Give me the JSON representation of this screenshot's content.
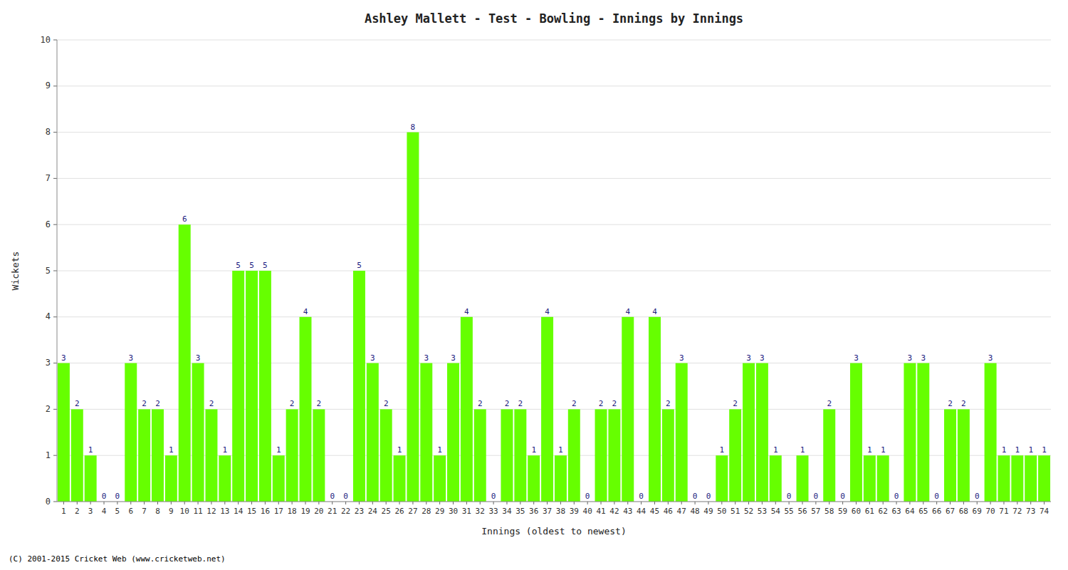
{
  "chart_data": {
    "type": "bar",
    "title": "Ashley Mallett - Test - Bowling - Innings by Innings",
    "x_label": "Innings (oldest to newest)",
    "y_label": "Wickets",
    "footer": "(C) 2001-2015 Cricket Web (www.cricketweb.net)",
    "categories": [
      "1",
      "2",
      "3",
      "4",
      "5",
      "6",
      "7",
      "8",
      "9",
      "10",
      "11",
      "12",
      "13",
      "14",
      "15",
      "16",
      "17",
      "18",
      "19",
      "20",
      "21",
      "22",
      "23",
      "24",
      "25",
      "26",
      "27",
      "28",
      "29",
      "30",
      "31",
      "32",
      "33",
      "34",
      "35",
      "36",
      "37",
      "38",
      "39",
      "40",
      "41",
      "42",
      "43",
      "44",
      "45",
      "46",
      "47",
      "48",
      "49",
      "50",
      "51",
      "52",
      "53",
      "54",
      "55",
      "56",
      "57",
      "58",
      "59",
      "60",
      "61",
      "62",
      "63",
      "64",
      "65",
      "66",
      "67",
      "68",
      "69",
      "70",
      "71",
      "72",
      "73",
      "74"
    ],
    "values": [
      3,
      2,
      1,
      0,
      0,
      3,
      2,
      2,
      1,
      6,
      3,
      2,
      1,
      5,
      5,
      5,
      1,
      2,
      4,
      2,
      0,
      0,
      5,
      3,
      2,
      1,
      8,
      3,
      1,
      3,
      4,
      2,
      0,
      2,
      2,
      1,
      4,
      1,
      2,
      0,
      2,
      2,
      4,
      0,
      4,
      2,
      3,
      0,
      0,
      1,
      2,
      3,
      3,
      1,
      0,
      1,
      0,
      2,
      0,
      3,
      1,
      1,
      0,
      3,
      3,
      0,
      2,
      2,
      0,
      3,
      1,
      1,
      1,
      1
    ],
    "color": "#66ff00",
    "ylim": [
      0,
      10
    ],
    "yticks": [
      0,
      1,
      2,
      3,
      4,
      5,
      6,
      7,
      8,
      9,
      10
    ],
    "grid": true,
    "data_labels": true
  }
}
